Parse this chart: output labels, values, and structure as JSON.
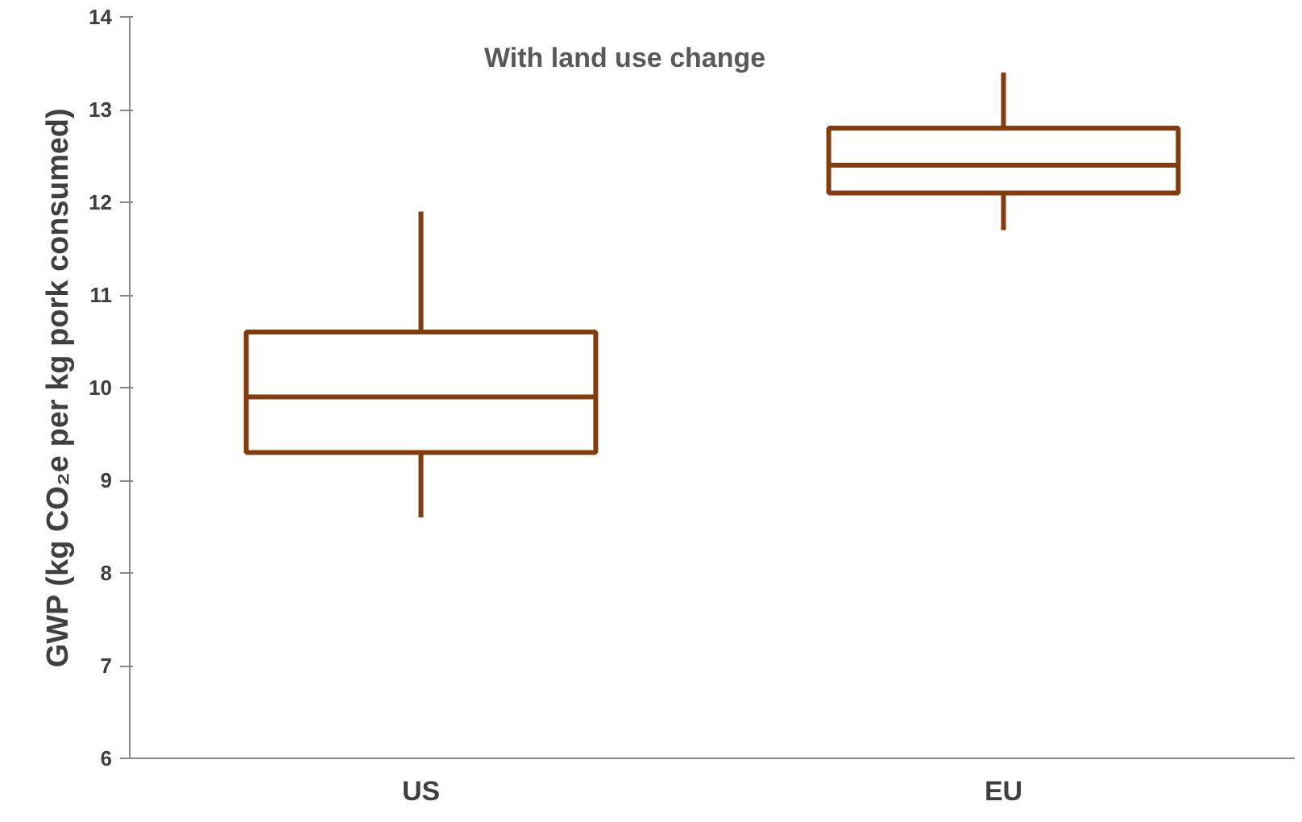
{
  "chart_data": {
    "type": "box",
    "ylabel": "GWP (kg CO₂e per kg pork consumed)",
    "categories": [
      "US",
      "EU"
    ],
    "color": "#843c0c",
    "boxes": [
      {
        "low": 8.6,
        "q1": 9.3,
        "median": 9.9,
        "q3": 10.6,
        "high": 11.9
      },
      {
        "low": 11.7,
        "q1": 12.1,
        "median": 12.4,
        "q3": 12.8,
        "high": 13.4
      }
    ],
    "ylim": [
      6,
      14
    ],
    "yticks": [
      6,
      7,
      8,
      9,
      10,
      11,
      12,
      13,
      14
    ],
    "annotations": [
      "With land use change"
    ],
    "grid": false
  }
}
